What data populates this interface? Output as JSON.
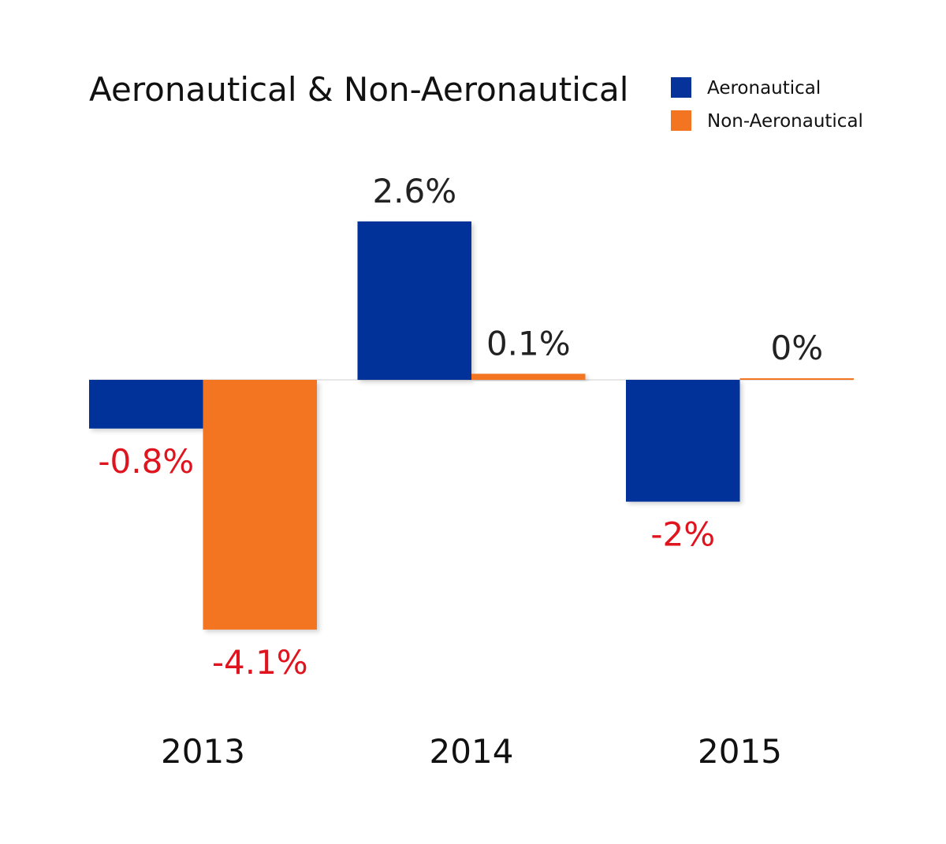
{
  "chart_data": {
    "type": "bar",
    "title": "Aeronautical & Non-Aeronautical",
    "categories": [
      "2013",
      "2014",
      "2015"
    ],
    "series": [
      {
        "name": "Aeronautical",
        "color": "#05339a",
        "values": [
          -0.8,
          2.6,
          -2
        ],
        "labels": [
          "-0.8%",
          "2.6%",
          "-2%"
        ]
      },
      {
        "name": "Non-Aeronautical",
        "color": "#f37521",
        "values": [
          -4.1,
          0.1,
          0
        ],
        "labels": [
          "-4.1%",
          "0.1%",
          "0%"
        ]
      }
    ],
    "xlabel": "",
    "ylabel": "",
    "ylim": [
      -4.1,
      2.6
    ],
    "grid": false,
    "legend": "top-right",
    "label_colors": {
      "positive": "#222222",
      "negative": "#e0141e"
    },
    "baseline_color": "#cfcfcf",
    "text_color": "#111111"
  }
}
